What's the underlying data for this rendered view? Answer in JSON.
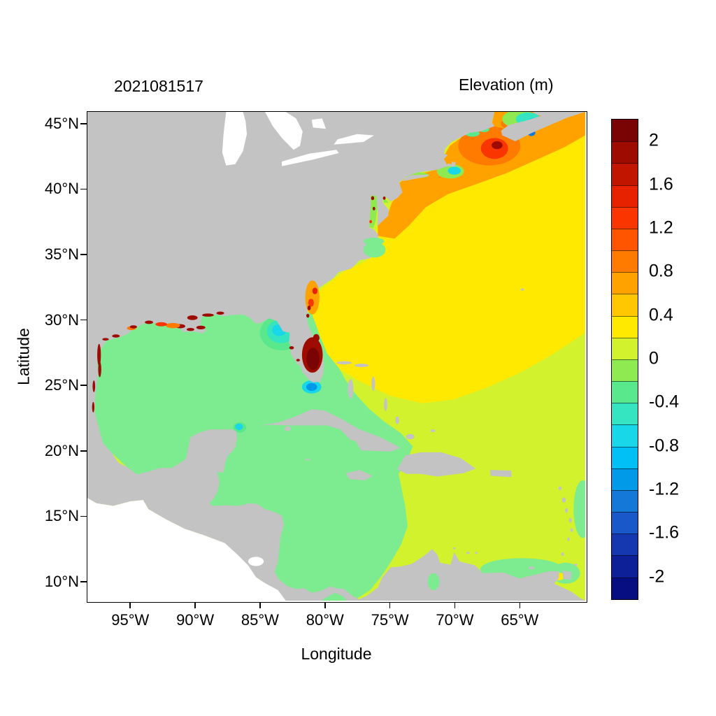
{
  "frame_color": "#000000",
  "chart_data": {
    "type": "heatmap",
    "title": "Elevation (m)",
    "timestamp": "2021081517",
    "xlabel": "Longitude",
    "ylabel": "Latitude",
    "xlim_deg_east": [
      -98.3,
      -59.9
    ],
    "ylim_deg_north": [
      8.5,
      45.9
    ],
    "x_ticks": [
      {
        "lon": -95,
        "label": "95°W"
      },
      {
        "lon": -90,
        "label": "90°W"
      },
      {
        "lon": -85,
        "label": "85°W"
      },
      {
        "lon": -80,
        "label": "80°W"
      },
      {
        "lon": -75,
        "label": "75°W"
      },
      {
        "lon": -70,
        "label": "70°W"
      },
      {
        "lon": -65,
        "label": "65°W"
      }
    ],
    "y_ticks": [
      {
        "lat": 45,
        "label": "45°N"
      },
      {
        "lat": 40,
        "label": "40°N"
      },
      {
        "lat": 35,
        "label": "35°N"
      },
      {
        "lat": 30,
        "label": "30°N"
      },
      {
        "lat": 25,
        "label": "25°N"
      },
      {
        "lat": 20,
        "label": "20°N"
      },
      {
        "lat": 15,
        "label": "15°N"
      },
      {
        "lat": 10,
        "label": "10°N"
      }
    ],
    "grid": false,
    "legend_position": "right",
    "colorbar": {
      "value_range": [
        -2.2,
        2.2
      ],
      "step": 0.2,
      "tick_labels": [
        "2",
        "1.6",
        "1.2",
        "0.8",
        "0.4",
        "0",
        "-0.4",
        "-0.8",
        "-1.2",
        "-1.6",
        "-2"
      ],
      "colors_top_to_bottom": [
        "#7a0403",
        "#9e0b00",
        "#c21500",
        "#e62200",
        "#fb3500",
        "#ff5500",
        "#ff7b00",
        "#ffa200",
        "#ffc702",
        "#ffe900",
        "#d2f22e",
        "#8fe950",
        "#59e88c",
        "#35e4c0",
        "#18d7e8",
        "#00c0f5",
        "#009ae8",
        "#1478d8",
        "#1858c8",
        "#1538b0",
        "#0e2098",
        "#070e82"
      ]
    },
    "land_color": "#c3c3c3",
    "no_data_color": "#ffffff",
    "regions": [
      {
        "name": "open-atlantic",
        "approx_elevation_m": 0.5,
        "color": "#ffe900"
      },
      {
        "name": "northeast-us-shelf",
        "approx_elevation_m": 0.7,
        "color": "#ffa200"
      },
      {
        "name": "gulf-of-maine",
        "approx_elevation_m": 1.0,
        "color": "#ff7b00"
      },
      {
        "name": "bay-of-fundy-peak",
        "approx_elevation_m": 1.4,
        "color": "#fb3500"
      },
      {
        "name": "gulf-of-mexico",
        "approx_elevation_m": -0.1,
        "color": "#7deb8f"
      },
      {
        "name": "western-caribbean",
        "approx_elevation_m": -0.1,
        "color": "#7deb8f"
      },
      {
        "name": "eastern-caribbean",
        "approx_elevation_m": 0.1,
        "color": "#d2f22e"
      },
      {
        "name": "florida-big-bend-coast",
        "approx_elevation_m": -0.6,
        "color": "#18d7e8"
      },
      {
        "name": "florida-bay-keys",
        "approx_elevation_m": -0.9,
        "color": "#189ce8"
      },
      {
        "name": "florida-east-coast-waters",
        "approx_elevation_m": 2.1,
        "color": "#7a0403"
      },
      {
        "name": "northern-gulf-coast-marshes",
        "approx_elevation_m": 1.9,
        "color": "#9e0b00"
      },
      {
        "name": "southern-gulf-of-st-lawrence",
        "approx_elevation_m": -0.5,
        "color": "#35e4c0"
      }
    ]
  }
}
